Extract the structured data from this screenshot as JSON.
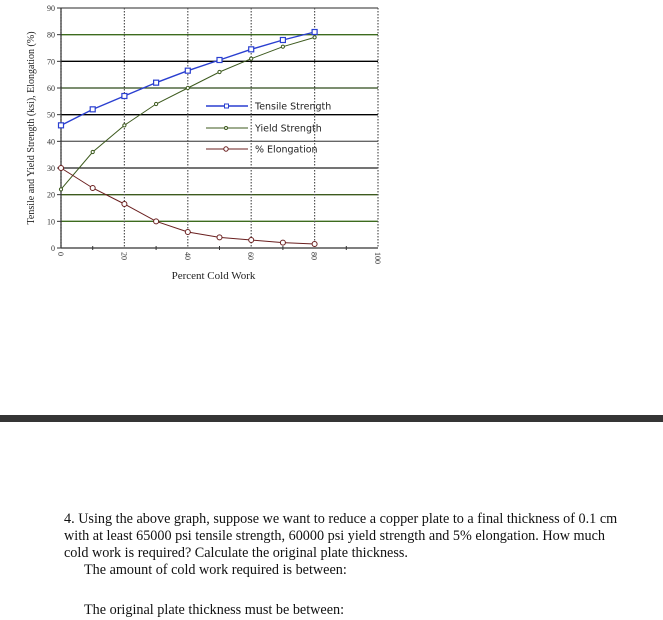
{
  "chart_data": {
    "type": "line",
    "title": "",
    "xlabel": "Percent Cold Work",
    "ylabel": "Tensile and Yield Strength (ksi), Elongation (%)",
    "xlim": [
      0,
      100
    ],
    "ylim": [
      0,
      90
    ],
    "xticks": [
      0,
      20,
      40,
      60,
      80,
      100
    ],
    "yticks": [
      0,
      10,
      20,
      30,
      40,
      50,
      60,
      70,
      80,
      90
    ],
    "grid": true,
    "legend_placement": "center-right",
    "x": [
      0,
      10,
      20,
      30,
      40,
      50,
      60,
      70,
      80
    ],
    "series": [
      {
        "name": "Tensile Strength",
        "color": "#2a3fd0",
        "marker": "square",
        "values": [
          46,
          52,
          57,
          62,
          66.5,
          70.5,
          74.5,
          78,
          81
        ]
      },
      {
        "name": "Yield Strength",
        "color": "#3d5a1e",
        "marker": "circle-small",
        "values": [
          22,
          36,
          46,
          54,
          60,
          66,
          71,
          75.5,
          79
        ]
      },
      {
        "name": "% Elongation",
        "color": "#6a1f1f",
        "marker": "circle",
        "values": [
          30,
          22.5,
          16.5,
          10,
          6,
          4,
          3,
          2,
          1.5
        ]
      }
    ]
  },
  "question": {
    "line1": "4. Using the above graph, suppose we want to reduce a copper plate to a final thickness of 0.1 cm",
    "line2": "with at least 65000 psi tensile strength, 60000 psi yield strength and 5% elongation. How much",
    "line3": "cold work is required? Calculate the original plate thickness.",
    "prompt_cold_work": "The amount of cold work required is between:",
    "prompt_thickness": "The original plate thickness must be between:"
  }
}
